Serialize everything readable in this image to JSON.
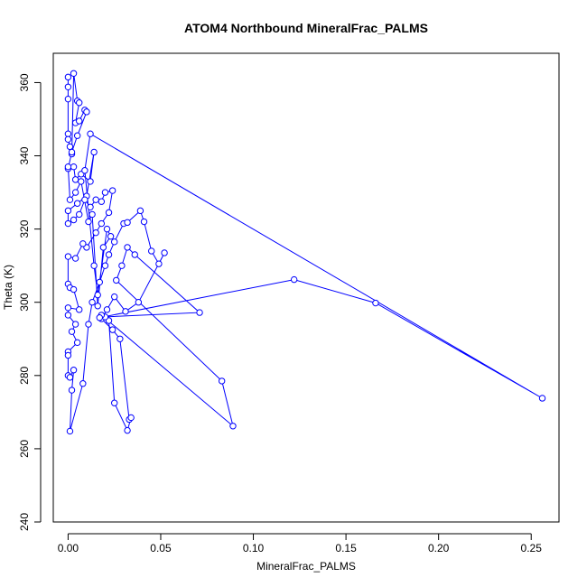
{
  "chart_data": {
    "type": "line",
    "title": "ATOM4 Northbound MineralFrac_PALMS",
    "xlabel": "MineralFrac_PALMS",
    "ylabel": "Theta (K)",
    "xlim": [
      -0.008,
      0.265
    ],
    "ylim": [
      240,
      368
    ],
    "x_ticks": [
      "0.00",
      "0.05",
      "0.10",
      "0.15",
      "0.20",
      "0.25"
    ],
    "y_ticks": [
      "240",
      "260",
      "280",
      "300",
      "320",
      "340",
      "360"
    ],
    "series_color": "#0000ff",
    "marker": "open-circle",
    "grid": false,
    "legend": "none",
    "series": [
      {
        "points": [
          [
            0.0,
            355.5
          ],
          [
            0.0,
            361.5
          ],
          [
            0.0,
            358.8
          ],
          [
            0.0,
            346.0
          ],
          [
            0.0,
            344.5
          ],
          [
            0.001,
            342.5
          ],
          [
            0.002,
            340.5
          ],
          [
            0.003,
            362.5
          ],
          [
            0.005,
            355.0
          ],
          [
            0.006,
            354.5
          ],
          [
            0.004,
            349.0
          ],
          [
            0.006,
            349.5
          ],
          [
            0.009,
            352.5
          ],
          [
            0.01,
            352.0
          ],
          [
            0.005,
            345.5
          ],
          [
            0.002,
            341.0
          ],
          [
            0.0,
            336.5
          ],
          [
            0.003,
            337.0
          ],
          [
            0.004,
            333.5
          ],
          [
            0.007,
            335.0
          ],
          [
            0.012,
            333.0
          ],
          [
            0.014,
            341.0
          ],
          [
            0.01,
            329.0
          ],
          [
            0.005,
            327.0
          ],
          [
            0.0,
            325.0
          ],
          [
            0.0,
            321.5
          ],
          [
            0.003,
            322.5
          ],
          [
            0.006,
            324.0
          ],
          [
            0.009,
            328.0
          ],
          [
            0.012,
            326.0
          ],
          [
            0.015,
            328.0
          ],
          [
            0.018,
            327.5
          ],
          [
            0.02,
            330.0
          ],
          [
            0.024,
            330.5
          ],
          [
            0.022,
            324.5
          ],
          [
            0.018,
            321.5
          ],
          [
            0.015,
            319.0
          ],
          [
            0.01,
            315.0
          ],
          [
            0.008,
            316.0
          ],
          [
            0.004,
            312.0
          ],
          [
            0.0,
            312.5
          ],
          [
            0.0,
            305.0
          ],
          [
            0.001,
            304.0
          ],
          [
            0.003,
            303.5
          ],
          [
            0.006,
            298.0
          ],
          [
            0.0,
            298.5
          ],
          [
            0.0,
            296.5
          ],
          [
            0.004,
            294.0
          ],
          [
            0.002,
            292.0
          ],
          [
            0.005,
            289.0
          ],
          [
            0.0,
            286.5
          ],
          [
            0.0,
            285.5
          ],
          [
            0.0,
            280.0
          ],
          [
            0.001,
            279.5
          ],
          [
            0.003,
            281.5
          ],
          [
            0.002,
            276.0
          ],
          [
            0.001,
            264.8
          ],
          [
            0.008,
            277.8
          ],
          [
            0.011,
            294.0
          ],
          [
            0.013,
            300.0
          ],
          [
            0.017,
            305.5
          ],
          [
            0.02,
            310.0
          ],
          [
            0.022,
            313.0
          ],
          [
            0.025,
            316.5
          ],
          [
            0.03,
            321.5
          ],
          [
            0.032,
            321.8
          ],
          [
            0.039,
            325.0
          ],
          [
            0.041,
            322.0
          ],
          [
            0.045,
            314.0
          ],
          [
            0.049,
            310.5
          ],
          [
            0.052,
            313.5
          ],
          [
            0.038,
            300.0
          ],
          [
            0.031,
            297.5
          ],
          [
            0.025,
            301.5
          ],
          [
            0.021,
            298.0
          ],
          [
            0.018,
            295.5
          ],
          [
            0.024,
            292.5
          ],
          [
            0.028,
            290.0
          ],
          [
            0.033,
            268.0
          ],
          [
            0.034,
            268.5
          ],
          [
            0.032,
            265.0
          ],
          [
            0.025,
            272.5
          ],
          [
            0.022,
            295.0
          ],
          [
            0.02,
            296.0
          ],
          [
            0.071,
            297.2
          ],
          [
            0.036,
            313.0
          ],
          [
            0.032,
            315.0
          ],
          [
            0.029,
            310.0
          ],
          [
            0.026,
            306.0
          ],
          [
            0.083,
            278.5
          ],
          [
            0.089,
            266.2
          ],
          [
            0.018,
            296.5
          ],
          [
            0.017,
            295.8
          ],
          [
            0.122,
            306.2
          ],
          [
            0.166,
            299.8
          ],
          [
            0.256,
            273.8
          ],
          [
            0.012,
            346.0
          ],
          [
            0.009,
            336.0
          ],
          [
            0.014,
            310.0
          ],
          [
            0.016,
            302.0
          ],
          [
            0.021,
            320.0
          ],
          [
            0.023,
            318.0
          ],
          [
            0.019,
            315.0
          ],
          [
            0.016,
            299.0
          ],
          [
            0.013,
            324.0
          ],
          [
            0.011,
            322.0
          ],
          [
            0.007,
            333.0
          ],
          [
            0.004,
            330.0
          ],
          [
            0.001,
            328.0
          ],
          [
            0.0,
            337.0
          ]
        ]
      }
    ]
  }
}
